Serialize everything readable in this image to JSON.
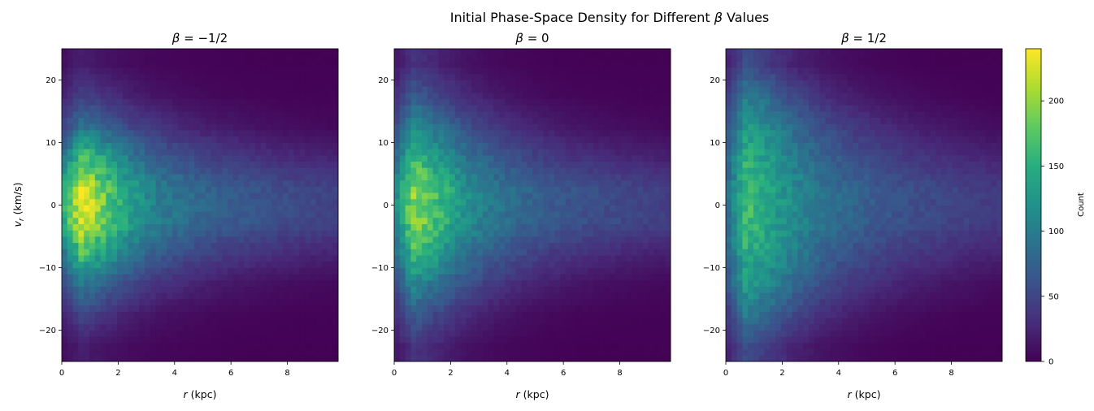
{
  "chart_data": {
    "type": "heatmap",
    "title_prefix": "Initial Phase-Space Density for Different ",
    "title_symbol": "β",
    "title_suffix": " Values",
    "xlabel_symbol": "r",
    "xlabel_unit": " (kpc)",
    "ylabel_symbol": "v",
    "ylabel_sub": "r",
    "ylabel_unit": " (km/s)",
    "xlim": [
      0,
      9.8
    ],
    "ylim": [
      -25,
      25
    ],
    "xticks": [
      0,
      2,
      4,
      6,
      8
    ],
    "yticks": [
      -20,
      -10,
      0,
      10,
      20
    ],
    "bins": [
      50,
      50
    ],
    "colormap": "viridis",
    "colorbar": {
      "label": "Count",
      "range": [
        0,
        240
      ],
      "ticks": [
        0,
        50,
        100,
        150,
        200
      ]
    },
    "r_centers": [
      0.1,
      0.7,
      1.5,
      2.5,
      3.5,
      4.5,
      5.5,
      6.5,
      7.5,
      8.5,
      9.5
    ],
    "v_centers": [
      22.5,
      17.5,
      12.5,
      7.5,
      2.5,
      -2.5,
      -7.5,
      -12.5,
      -17.5,
      -22.5
    ],
    "panels": [
      {
        "beta_label": "β = −1/2",
        "sym": "β",
        "eq": " = −1/2",
        "counts": [
          [
            10,
            20,
            12,
            7,
            4,
            3,
            2,
            1,
            1,
            1,
            1
          ],
          [
            25,
            45,
            35,
            20,
            12,
            8,
            5,
            4,
            3,
            2,
            2
          ],
          [
            50,
            95,
            75,
            50,
            35,
            25,
            18,
            14,
            10,
            8,
            6
          ],
          [
            100,
            175,
            140,
            95,
            70,
            55,
            45,
            38,
            32,
            28,
            25
          ],
          [
            150,
            228,
            185,
            130,
            100,
            85,
            72,
            65,
            58,
            52,
            48
          ],
          [
            150,
            228,
            185,
            130,
            100,
            85,
            72,
            65,
            58,
            52,
            48
          ],
          [
            100,
            170,
            140,
            95,
            70,
            55,
            45,
            38,
            32,
            28,
            25
          ],
          [
            55,
            100,
            75,
            50,
            35,
            25,
            18,
            14,
            10,
            8,
            6
          ],
          [
            25,
            50,
            35,
            20,
            12,
            8,
            5,
            4,
            3,
            2,
            2
          ],
          [
            10,
            20,
            12,
            7,
            4,
            3,
            2,
            1,
            1,
            1,
            1
          ]
        ]
      },
      {
        "beta_label": "β = 0",
        "sym": "β",
        "eq": " = 0",
        "counts": [
          [
            15,
            35,
            25,
            12,
            6,
            4,
            2,
            1,
            1,
            1,
            1
          ],
          [
            35,
            70,
            50,
            30,
            18,
            10,
            6,
            4,
            3,
            2,
            2
          ],
          [
            60,
            115,
            90,
            60,
            40,
            28,
            20,
            14,
            10,
            8,
            6
          ],
          [
            90,
            165,
            135,
            95,
            70,
            55,
            42,
            35,
            30,
            25,
            22
          ],
          [
            120,
            200,
            165,
            120,
            95,
            80,
            68,
            60,
            55,
            50,
            45
          ],
          [
            120,
            200,
            165,
            120,
            95,
            80,
            68,
            60,
            55,
            50,
            45
          ],
          [
            90,
            165,
            135,
            95,
            70,
            55,
            42,
            35,
            30,
            25,
            22
          ],
          [
            60,
            115,
            90,
            60,
            40,
            28,
            20,
            14,
            10,
            8,
            6
          ],
          [
            35,
            70,
            50,
            30,
            18,
            10,
            6,
            4,
            3,
            2,
            2
          ],
          [
            15,
            35,
            25,
            12,
            6,
            4,
            2,
            1,
            1,
            1,
            1
          ]
        ]
      },
      {
        "beta_label": "β = 1/2",
        "sym": "β",
        "eq": " = 1/2",
        "counts": [
          [
            25,
            55,
            40,
            22,
            12,
            7,
            4,
            2,
            1,
            1,
            1
          ],
          [
            45,
            100,
            80,
            50,
            30,
            20,
            12,
            8,
            5,
            3,
            2
          ],
          [
            65,
            130,
            110,
            80,
            55,
            40,
            30,
            22,
            16,
            12,
            8
          ],
          [
            80,
            150,
            130,
            100,
            75,
            60,
            48,
            40,
            34,
            28,
            24
          ],
          [
            90,
            165,
            140,
            110,
            90,
            78,
            66,
            58,
            52,
            46,
            42
          ],
          [
            90,
            165,
            140,
            110,
            90,
            78,
            66,
            58,
            52,
            46,
            42
          ],
          [
            80,
            150,
            130,
            100,
            75,
            60,
            48,
            40,
            34,
            28,
            24
          ],
          [
            65,
            130,
            110,
            80,
            55,
            40,
            30,
            22,
            16,
            12,
            8
          ],
          [
            45,
            100,
            80,
            50,
            30,
            20,
            12,
            8,
            5,
            3,
            2
          ],
          [
            25,
            55,
            40,
            22,
            12,
            7,
            4,
            2,
            1,
            1,
            1
          ]
        ]
      }
    ]
  }
}
